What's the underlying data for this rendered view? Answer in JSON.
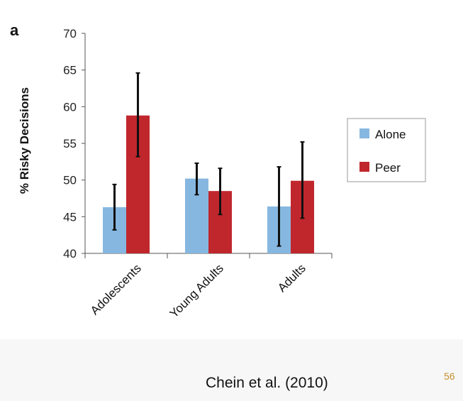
{
  "panel_label": "a",
  "citation": "Chein et al. (2010)",
  "page_number": "56",
  "colors": {
    "alone": "#86b7e0",
    "peer": "#c0272d",
    "error_bar": "#111111",
    "axis": "#555555"
  },
  "chart_data": {
    "type": "bar",
    "title": "",
    "xlabel": "",
    "ylabel": "% Risky Decisions",
    "ylim": [
      40,
      70
    ],
    "yticks": [
      40,
      45,
      50,
      55,
      60,
      65,
      70
    ],
    "grid": false,
    "legend_position": "right",
    "categories": [
      "Adolescents",
      "Young Adults",
      "Adults"
    ],
    "series": [
      {
        "name": "Alone",
        "values": [
          46.3,
          50.2,
          46.4
        ],
        "err_low": [
          43.2,
          48.0,
          41.0
        ],
        "err_high": [
          49.4,
          52.3,
          51.8
        ]
      },
      {
        "name": "Peer",
        "values": [
          58.8,
          48.5,
          49.9
        ],
        "err_low": [
          53.2,
          45.3,
          44.8
        ],
        "err_high": [
          64.6,
          51.6,
          55.2
        ]
      }
    ]
  }
}
